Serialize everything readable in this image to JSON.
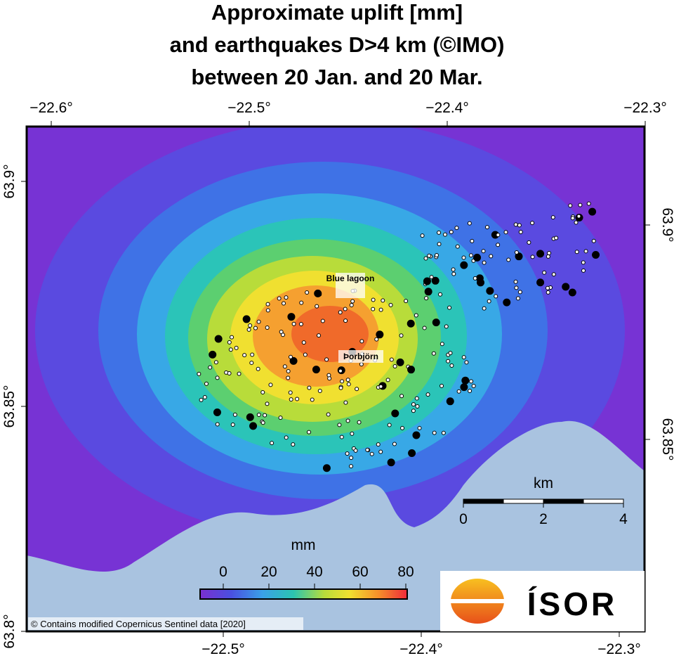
{
  "title": [
    "Approximate uplift [mm]",
    "and earthquakes D>4 km (©IMO)",
    "between 20 Jan. and 20 Mar."
  ],
  "map": {
    "lon_ticks_top": [
      {
        "value": -22.6,
        "label": "−22.6°"
      },
      {
        "value": -22.5,
        "label": "−22.5°"
      },
      {
        "value": -22.4,
        "label": "−22.4°"
      },
      {
        "value": -22.3,
        "label": "−22.3°"
      }
    ],
    "lon_ticks_bottom": [
      {
        "value": -22.5,
        "label": "−22.5°"
      },
      {
        "value": -22.4,
        "label": "−22.4°"
      },
      {
        "value": -22.3,
        "label": "−22.3°"
      }
    ],
    "lat_ticks_left": [
      {
        "value": 63.9,
        "label": "63.9°"
      },
      {
        "value": 63.85,
        "label": "63.85°"
      },
      {
        "value": 63.8,
        "label": "63.8°"
      }
    ],
    "lat_ticks_right": [
      {
        "value": 63.9,
        "label": "63.9°"
      },
      {
        "value": 63.85,
        "label": "63.85°"
      }
    ],
    "places": [
      "Blue lagoon",
      "Þorbjörn"
    ],
    "credit": "© Contains modified Copernicus Sentinel data [2020]"
  },
  "colorbar": {
    "label": "mm",
    "lim": [
      0,
      80
    ],
    "ticks": [
      0,
      20,
      40,
      60,
      80
    ]
  },
  "scale_bar": {
    "unit": "km",
    "lim": [
      0,
      4
    ],
    "ticks": [
      0,
      2,
      4
    ]
  },
  "logo": "ÍSOR"
}
